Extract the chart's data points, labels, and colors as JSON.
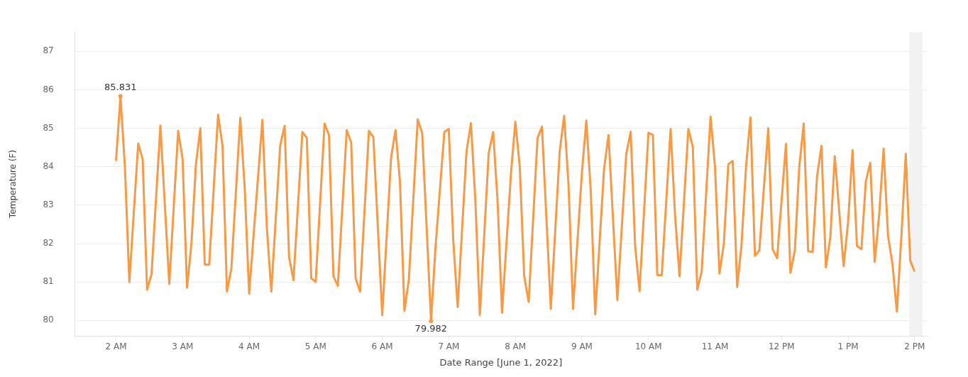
{
  "chart_data": {
    "type": "line",
    "xlabel": "Date Range [June 1, 2022]",
    "ylabel": "Temperature (F)",
    "x": [
      "2022-06-01T02:00",
      "2022-06-01T02:04",
      "2022-06-01T02:08",
      "2022-06-01T02:12",
      "2022-06-01T02:20",
      "2022-06-01T02:24",
      "2022-06-01T02:28",
      "2022-06-01T02:32",
      "2022-06-01T02:40",
      "2022-06-01T02:48",
      "2022-06-01T02:56",
      "2022-06-01T03:00",
      "2022-06-01T03:04",
      "2022-06-01T03:08",
      "2022-06-01T03:12",
      "2022-06-01T03:16",
      "2022-06-01T03:20",
      "2022-06-01T03:24",
      "2022-06-01T03:32",
      "2022-06-01T03:36",
      "2022-06-01T03:40",
      "2022-06-01T03:44",
      "2022-06-01T03:52",
      "2022-06-01T03:56",
      "2022-06-01T04:00",
      "2022-06-01T04:12",
      "2022-06-01T04:16",
      "2022-06-01T04:20",
      "2022-06-01T04:28",
      "2022-06-01T04:32",
      "2022-06-01T04:36",
      "2022-06-01T04:40",
      "2022-06-01T04:48",
      "2022-06-01T04:52",
      "2022-06-01T04:56",
      "2022-06-01T05:00",
      "2022-06-01T05:08",
      "2022-06-01T05:12",
      "2022-06-01T05:16",
      "2022-06-01T05:20",
      "2022-06-01T05:28",
      "2022-06-01T05:32",
      "2022-06-01T05:36",
      "2022-06-01T05:40",
      "2022-06-01T05:48",
      "2022-06-01T05:52",
      "2022-06-01T06:00",
      "2022-06-01T06:08",
      "2022-06-01T06:12",
      "2022-06-01T06:16",
      "2022-06-01T06:20",
      "2022-06-01T06:24",
      "2022-06-01T06:32",
      "2022-06-01T06:36",
      "2022-06-01T06:44",
      "2022-06-01T06:48",
      "2022-06-01T06:56",
      "2022-06-01T07:00",
      "2022-06-01T07:04",
      "2022-06-01T07:08",
      "2022-06-01T07:16",
      "2022-06-01T07:20",
      "2022-06-01T07:24",
      "2022-06-01T07:28",
      "2022-06-01T07:36",
      "2022-06-01T07:40",
      "2022-06-01T07:44",
      "2022-06-01T07:48",
      "2022-06-01T07:56",
      "2022-06-01T08:00",
      "2022-06-01T08:04",
      "2022-06-01T08:08",
      "2022-06-01T08:12",
      "2022-06-01T08:20",
      "2022-06-01T08:24",
      "2022-06-01T08:32",
      "2022-06-01T08:40",
      "2022-06-01T08:44",
      "2022-06-01T08:48",
      "2022-06-01T08:52",
      "2022-06-01T09:00",
      "2022-06-01T09:04",
      "2022-06-01T09:08",
      "2022-06-01T09:12",
      "2022-06-01T09:20",
      "2022-06-01T09:24",
      "2022-06-01T09:32",
      "2022-06-01T09:40",
      "2022-06-01T09:44",
      "2022-06-01T09:48",
      "2022-06-01T09:52",
      "2022-06-01T10:00",
      "2022-06-01T10:04",
      "2022-06-01T10:08",
      "2022-06-01T10:12",
      "2022-06-01T10:20",
      "2022-06-01T10:24",
      "2022-06-01T10:28",
      "2022-06-01T10:36",
      "2022-06-01T10:40",
      "2022-06-01T10:44",
      "2022-06-01T10:48",
      "2022-06-01T10:56",
      "2022-06-01T11:00",
      "2022-06-01T11:04",
      "2022-06-01T11:08",
      "2022-06-01T11:12",
      "2022-06-01T11:16",
      "2022-06-01T11:20",
      "2022-06-01T11:24",
      "2022-06-01T11:28",
      "2022-06-01T11:32",
      "2022-06-01T11:36",
      "2022-06-01T11:40",
      "2022-06-01T11:48",
      "2022-06-01T11:52",
      "2022-06-01T11:56",
      "2022-06-01T12:04",
      "2022-06-01T12:08",
      "2022-06-01T12:12",
      "2022-06-01T12:16",
      "2022-06-01T12:20",
      "2022-06-01T12:24",
      "2022-06-01T12:28",
      "2022-06-01T12:32",
      "2022-06-01T12:36",
      "2022-06-01T12:40",
      "2022-06-01T12:44",
      "2022-06-01T12:48",
      "2022-06-01T12:56",
      "2022-06-01T13:00",
      "2022-06-01T13:04",
      "2022-06-01T13:08",
      "2022-06-01T13:12",
      "2022-06-01T13:16",
      "2022-06-01T13:20",
      "2022-06-01T13:24",
      "2022-06-01T13:28",
      "2022-06-01T13:32",
      "2022-06-01T13:36",
      "2022-06-01T13:40",
      "2022-06-01T13:44",
      "2022-06-01T13:48",
      "2022-06-01T13:52",
      "2022-06-01T13:56",
      "2022-06-01T14:00"
    ],
    "series": [
      {
        "color": "#f89a43",
        "values": [
          84.15,
          85.831,
          84.0,
          81.0,
          84.6,
          84.2,
          80.8,
          81.2,
          85.07,
          80.95,
          84.93,
          84.2,
          80.85,
          82.0,
          84.05,
          85.0,
          81.45,
          81.45,
          85.35,
          84.55,
          80.75,
          81.35,
          85.27,
          83.45,
          80.7,
          85.22,
          82.4,
          80.75,
          84.55,
          85.06,
          81.65,
          81.05,
          84.9,
          84.75,
          81.1,
          81.0,
          85.12,
          84.82,
          81.15,
          80.9,
          84.95,
          84.63,
          81.1,
          80.75,
          84.93,
          84.77,
          80.14,
          84.24,
          84.95,
          83.6,
          80.25,
          81.06,
          85.23,
          84.88,
          79.982,
          81.9,
          84.9,
          84.98,
          82.1,
          80.35,
          84.4,
          85.13,
          83.1,
          80.14,
          84.36,
          84.9,
          83.1,
          80.2,
          83.8,
          85.17,
          84.0,
          81.15,
          80.48,
          84.74,
          85.04,
          80.3,
          84.4,
          85.32,
          83.5,
          80.3,
          83.83,
          85.2,
          83.37,
          80.16,
          83.94,
          84.82,
          80.53,
          84.33,
          84.91,
          81.94,
          80.76,
          84.88,
          84.83,
          81.18,
          81.18,
          84.98,
          82.74,
          81.15,
          84.98,
          84.52,
          80.8,
          81.27,
          85.3,
          84.0,
          81.22,
          82.0,
          84.06,
          84.15,
          80.87,
          82.0,
          84.0,
          85.28,
          81.68,
          81.82,
          85.0,
          81.85,
          81.62,
          84.59,
          81.24,
          81.82,
          84.0,
          85.12,
          81.8,
          81.78,
          83.74,
          84.54,
          81.38,
          82.16,
          84.27,
          81.41,
          82.56,
          84.43,
          81.94,
          81.85,
          83.62,
          84.1,
          81.52,
          82.74,
          84.47,
          82.2,
          81.47,
          80.23,
          82.16,
          84.33,
          81.56,
          81.27
        ]
      }
    ],
    "xlim": [
      "2022-06-01T01:23",
      "2022-06-01T14:11"
    ],
    "xticks": [
      {
        "value": "2022-06-01T02:00",
        "label": "2 AM"
      },
      {
        "value": "2022-06-01T03:00",
        "label": "3 AM"
      },
      {
        "value": "2022-06-01T04:00",
        "label": "4 AM"
      },
      {
        "value": "2022-06-01T05:00",
        "label": "5 AM"
      },
      {
        "value": "2022-06-01T06:00",
        "label": "6 AM"
      },
      {
        "value": "2022-06-01T07:00",
        "label": "7 AM"
      },
      {
        "value": "2022-06-01T08:00",
        "label": "8 AM"
      },
      {
        "value": "2022-06-01T09:00",
        "label": "9 AM"
      },
      {
        "value": "2022-06-01T10:00",
        "label": "10 AM"
      },
      {
        "value": "2022-06-01T11:00",
        "label": "11 AM"
      },
      {
        "value": "2022-06-01T12:00",
        "label": "12 PM"
      },
      {
        "value": "2022-06-01T13:00",
        "label": "1 PM"
      },
      {
        "value": "2022-06-01T14:00",
        "label": "2 PM"
      }
    ],
    "ylim": [
      79.6,
      87.5
    ],
    "yticks": [
      80,
      81,
      82,
      83,
      84,
      85,
      86,
      87
    ],
    "grid": "y",
    "legend": false,
    "marker": "none",
    "line_style": "solid",
    "bands": [
      {
        "axis": "x",
        "from": "2022-06-01T13:55",
        "to": "2022-06-01T14:07",
        "color": "#f2f2f2"
      }
    ],
    "annotations": [
      {
        "text": "85.831",
        "x": "2022-06-01T02:04",
        "y": 85.831
      },
      {
        "text": "79.982",
        "x": "2022-06-01T06:44",
        "y": 79.982
      }
    ]
  }
}
